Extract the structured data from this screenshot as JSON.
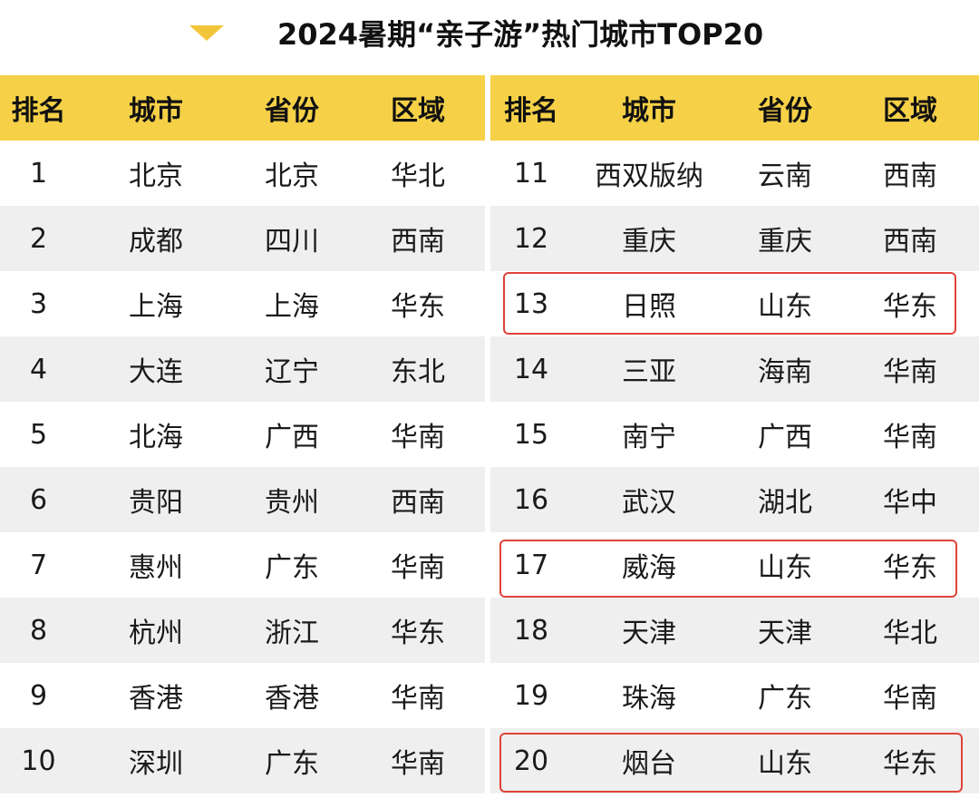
{
  "title": "2024暑期“亲子游”热门城市TOP20",
  "columns": [
    "排名",
    "城市",
    "省份",
    "区域"
  ],
  "left_rows": [
    [
      "1",
      "北京",
      "北京",
      "华北"
    ],
    [
      "2",
      "成都",
      "四川",
      "西南"
    ],
    [
      "3",
      "上海",
      "上海",
      "华东"
    ],
    [
      "4",
      "大连",
      "辽宁",
      "东北"
    ],
    [
      "5",
      "北海",
      "广西",
      "华南"
    ],
    [
      "6",
      "贵阳",
      "贵州",
      "西南"
    ],
    [
      "7",
      "惠州",
      "广东",
      "华南"
    ],
    [
      "8",
      "杭州",
      "浙江",
      "华东"
    ],
    [
      "9",
      "香港",
      "香港",
      "华南"
    ],
    [
      "10",
      "深圳",
      "广东",
      "华南"
    ]
  ],
  "right_rows": [
    [
      "11",
      "西双版纳",
      "云南",
      "西南"
    ],
    [
      "12",
      "重庆",
      "重庆",
      "西南"
    ],
    [
      "13",
      "日照",
      "山东",
      "华东"
    ],
    [
      "14",
      "三亚",
      "海南",
      "华南"
    ],
    [
      "15",
      "南宁",
      "广西",
      "华南"
    ],
    [
      "16",
      "武汉",
      "湖北",
      "华中"
    ],
    [
      "17",
      "威海",
      "山东",
      "华东"
    ],
    [
      "18",
      "天津",
      "天津",
      "华北"
    ],
    [
      "19",
      "珠海",
      "广东",
      "华南"
    ],
    [
      "20",
      "烟台",
      "山东",
      "华东"
    ]
  ],
  "highlighted_ranks": [
    "13",
    "17",
    "20"
  ],
  "colors": {
    "header_yellow": "#f6d148",
    "triangle": "#f2c63a",
    "alt_row": "#efefef",
    "highlight": "#e0433a"
  }
}
